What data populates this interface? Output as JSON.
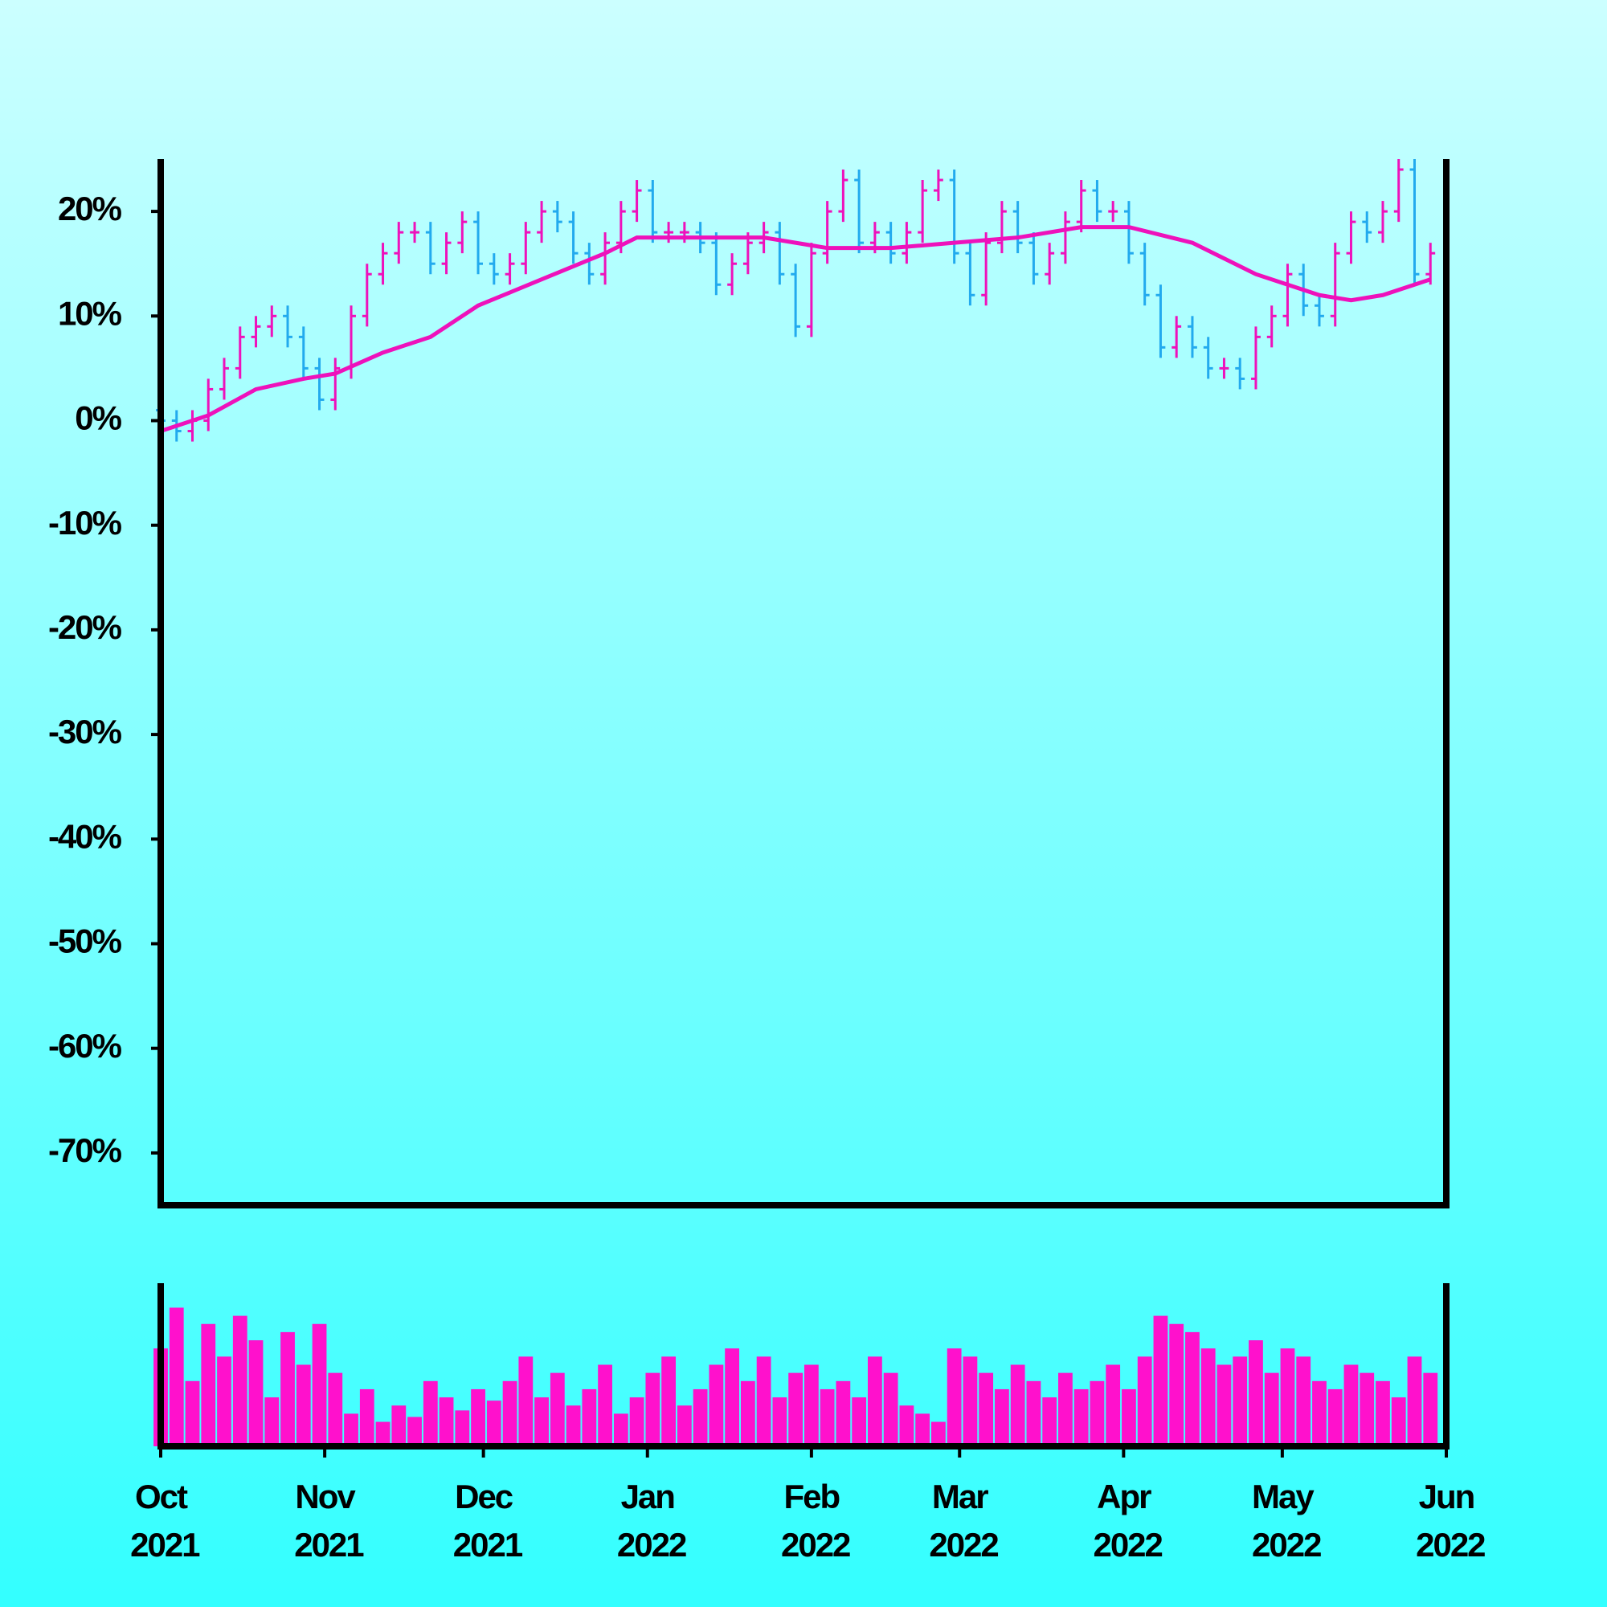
{
  "chart_data": {
    "type": "ohlc",
    "x": [
      0,
      3,
      6,
      9,
      12,
      15,
      18,
      21,
      24,
      27,
      30,
      33,
      36,
      39,
      42,
      45,
      48,
      51,
      54,
      57,
      60,
      63,
      66,
      69,
      72,
      75,
      78,
      81,
      84,
      87,
      90,
      93,
      96,
      99,
      102,
      105,
      108,
      111,
      114,
      117,
      120,
      123,
      126,
      129,
      132,
      135,
      138,
      141,
      144,
      147,
      150,
      153,
      156,
      159,
      162,
      165,
      168,
      171,
      174,
      177,
      180,
      183,
      186,
      189,
      192,
      195,
      198,
      201,
      204,
      207,
      210,
      213,
      216,
      219,
      222,
      225,
      228,
      231,
      234,
      237,
      240
    ],
    "open": [
      1,
      0,
      -1,
      0,
      3,
      5,
      8,
      9,
      10,
      8,
      5,
      2,
      5,
      10,
      14,
      16,
      18,
      18,
      15,
      17,
      19,
      15,
      14,
      15,
      18,
      20,
      19,
      16,
      14,
      17,
      20,
      22,
      18,
      18,
      18,
      17,
      13,
      15,
      17,
      18,
      14,
      9,
      16,
      20,
      23,
      17,
      18,
      16,
      18,
      22,
      23,
      16,
      12,
      17,
      20,
      17,
      14,
      16,
      19,
      22,
      20,
      20,
      16,
      12,
      7,
      9,
      7,
      5,
      5,
      4,
      8,
      10,
      14,
      11,
      10,
      16,
      19,
      18,
      20,
      24,
      14
    ],
    "high": [
      2,
      1,
      1,
      4,
      6,
      9,
      10,
      11,
      11,
      9,
      6,
      6,
      11,
      15,
      17,
      19,
      19,
      19,
      18,
      20,
      20,
      16,
      16,
      19,
      21,
      21,
      20,
      17,
      18,
      21,
      23,
      23,
      19,
      19,
      19,
      18,
      16,
      18,
      19,
      19,
      15,
      17,
      21,
      24,
      24,
      19,
      19,
      19,
      23,
      24,
      24,
      17,
      18,
      21,
      21,
      18,
      17,
      20,
      23,
      23,
      21,
      21,
      17,
      13,
      10,
      10,
      8,
      6,
      6,
      9,
      11,
      15,
      15,
      12,
      17,
      20,
      20,
      21,
      25,
      25,
      17
    ],
    "low": [
      -1,
      -2,
      -2,
      -1,
      2,
      4,
      7,
      8,
      7,
      4,
      1,
      1,
      4,
      9,
      13,
      15,
      17,
      14,
      14,
      16,
      14,
      13,
      13,
      14,
      17,
      18,
      15,
      13,
      13,
      16,
      19,
      17,
      17,
      17,
      16,
      12,
      12,
      14,
      16,
      13,
      8,
      8,
      15,
      19,
      16,
      16,
      15,
      15,
      17,
      21,
      15,
      11,
      11,
      16,
      16,
      13,
      13,
      15,
      18,
      19,
      19,
      15,
      11,
      6,
      6,
      6,
      4,
      4,
      3,
      3,
      7,
      9,
      10,
      9,
      9,
      15,
      17,
      17,
      19,
      13,
      13
    ],
    "close": [
      0,
      -1,
      0,
      3,
      5,
      8,
      9,
      10,
      8,
      5,
      2,
      5,
      10,
      14,
      16,
      18,
      18,
      15,
      17,
      19,
      15,
      14,
      15,
      18,
      20,
      19,
      16,
      14,
      17,
      20,
      22,
      18,
      18,
      18,
      17,
      13,
      15,
      17,
      18,
      14,
      9,
      16,
      20,
      23,
      17,
      18,
      16,
      18,
      22,
      23,
      16,
      12,
      17,
      20,
      17,
      14,
      16,
      19,
      22,
      20,
      20,
      16,
      12,
      7,
      9,
      7,
      5,
      5,
      4,
      8,
      10,
      14,
      11,
      10,
      16,
      19,
      18,
      20,
      24,
      14,
      16
    ],
    "volume": [
      60,
      85,
      40,
      75,
      55,
      80,
      65,
      30,
      70,
      50,
      75,
      45,
      20,
      35,
      15,
      25,
      18,
      40,
      30,
      22,
      35,
      28,
      40,
      55,
      30,
      45,
      25,
      35,
      50,
      20,
      30,
      45,
      55,
      25,
      35,
      50,
      60,
      40,
      55,
      30,
      45,
      50,
      35,
      40,
      30,
      55,
      45,
      25,
      20,
      15,
      60,
      55,
      45,
      35,
      50,
      40,
      30,
      45,
      35,
      40,
      50,
      35,
      55,
      80,
      75,
      70,
      60,
      50,
      55,
      65,
      45,
      60,
      55,
      40,
      35,
      50,
      45,
      40,
      30,
      55,
      45
    ],
    "volume_ylim": [
      0,
      100
    ],
    "ma_x": [
      0,
      9,
      18,
      27,
      33,
      42,
      51,
      60,
      72,
      84,
      90,
      102,
      114,
      126,
      138,
      150,
      162,
      174,
      183,
      195,
      207,
      219,
      225,
      231,
      240
    ],
    "ma": [
      -1,
      0.5,
      3,
      4,
      4.5,
      6.5,
      8,
      11,
      13.5,
      16,
      17.5,
      17.5,
      17.5,
      16.5,
      16.5,
      17,
      17.5,
      18.5,
      18.5,
      17,
      14,
      12,
      11.5,
      12,
      13.5
    ],
    "up_color": "#ee11bb",
    "down_color": "#22aaee",
    "ma_color": "#ee11bb",
    "volume_color": "#ff11cc",
    "xlim": [
      0,
      243
    ],
    "xticks": [
      {
        "value": 0,
        "label": "Oct 2021"
      },
      {
        "value": 31,
        "label": "Nov 2021"
      },
      {
        "value": 61,
        "label": "Dec 2021"
      },
      {
        "value": 92,
        "label": "Jan 2022"
      },
      {
        "value": 123,
        "label": "Feb 2022"
      },
      {
        "value": 151,
        "label": "Mar 2022"
      },
      {
        "value": 182,
        "label": "Apr 2022"
      },
      {
        "value": 212,
        "label": "May 2022"
      },
      {
        "value": 243,
        "label": "Jun 2022"
      }
    ],
    "ylim": [
      -75,
      25
    ],
    "yticks": [
      {
        "value": -70,
        "label": "-70%"
      },
      {
        "value": -60,
        "label": "-60%"
      },
      {
        "value": -50,
        "label": "-50%"
      },
      {
        "value": -40,
        "label": "-40%"
      },
      {
        "value": -30,
        "label": "-30%"
      },
      {
        "value": -20,
        "label": "-20%"
      },
      {
        "value": -10,
        "label": "-10%"
      },
      {
        "value": 0,
        "label": "0%"
      },
      {
        "value": 10,
        "label": "10%"
      },
      {
        "value": 20,
        "label": "20%"
      }
    ]
  }
}
